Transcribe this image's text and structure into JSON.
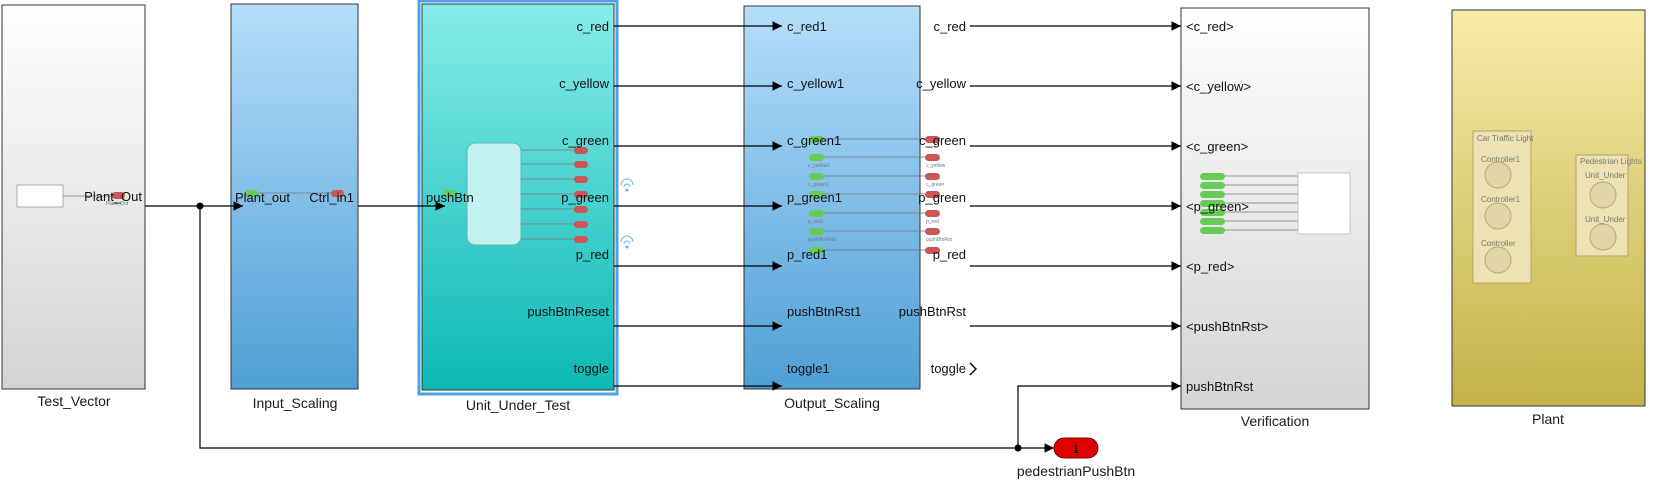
{
  "colors": {
    "port_green": "#66cc55",
    "port_red": "#cc5555",
    "selection": "#4aa3e8",
    "outport_fill": "#e00000"
  },
  "blocks": {
    "test_vector": {
      "name": "Test_Vector",
      "out_port": "Plant_Out",
      "tiny_label": "Plant_Out"
    },
    "input_scaling": {
      "name": "Input_Scaling",
      "in_port": "Plant_out",
      "out_port": "Ctrl_in1"
    },
    "unit_under_test": {
      "name": "Unit_Under_Test",
      "in_port": "pushBtn",
      "out_ports": [
        "c_red",
        "c_yellow",
        "c_green",
        "p_green",
        "p_red",
        "pushBtnReset",
        "toggle"
      ]
    },
    "output_scaling": {
      "name": "Output_Scaling",
      "in_ports": [
        "c_red1",
        "c_yellow1",
        "c_green1",
        "p_green1",
        "p_red1",
        "pushBtnRst1",
        "toggle1"
      ],
      "out_ports": [
        "c_red",
        "c_yellow",
        "c_green",
        "p_green",
        "p_red",
        "pushBtnRst",
        "toggle"
      ],
      "tiny_in": [
        "c_yellow1",
        "c_green1",
        "p_red1",
        "pushBtnRst1"
      ],
      "tiny_out": [
        "c_yellow",
        "c_green",
        "p_red",
        "pushBtnRst"
      ]
    },
    "verification": {
      "name": "Verification",
      "in_ports": [
        "<c_red>",
        "<c_yellow>",
        "<c_green>",
        "<p_green>",
        "<p_red>",
        "<pushBtnRst>",
        "pushBtnRst"
      ]
    },
    "plant": {
      "name": "Plant",
      "car_panel_title": "Car Traffic Light",
      "car_lamps": [
        "Controller1",
        "Controller1",
        "Controller"
      ],
      "ped_panel_title": "Pedestrian Lights",
      "ped_lamps": [
        "Unit_Under",
        "Unit_Under"
      ]
    },
    "outport": {
      "number": "1",
      "name": "pedestrianPushBtn"
    }
  }
}
